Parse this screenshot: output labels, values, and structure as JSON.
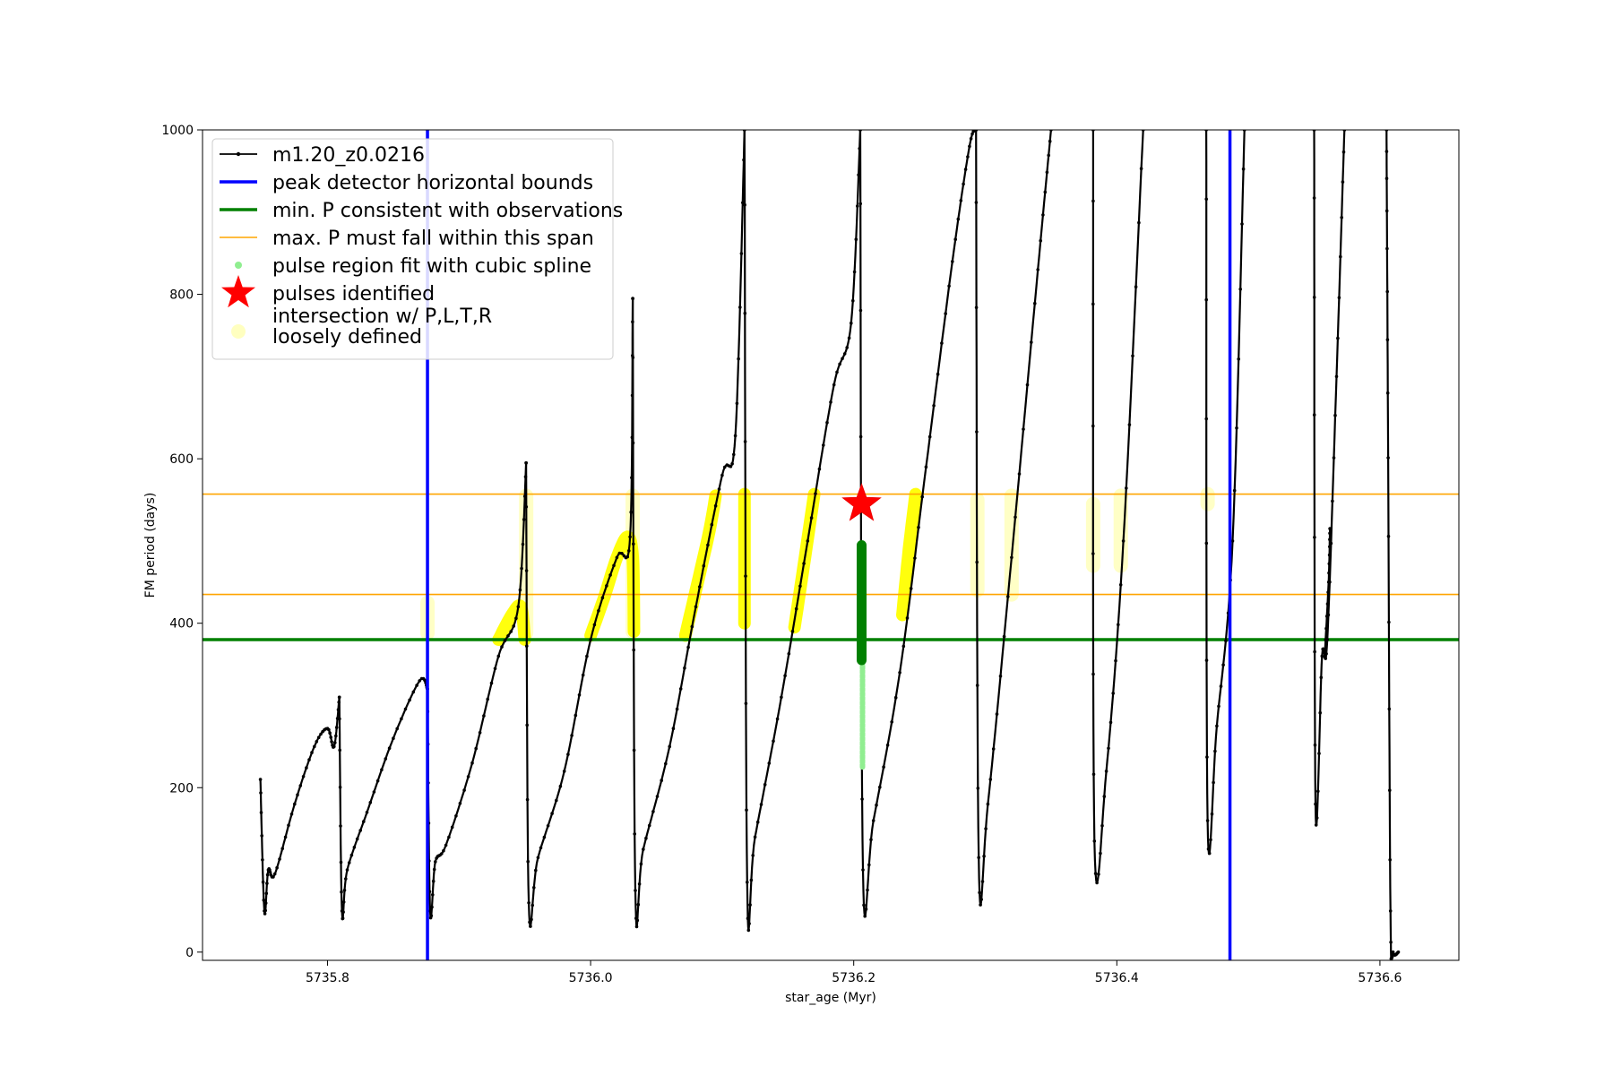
{
  "chart_data": {
    "type": "line",
    "xlabel": "star_age (Myr)",
    "ylabel": "FM period (days)",
    "xlim": [
      5735.705,
      5736.66
    ],
    "ylim": [
      -10,
      1000
    ],
    "xticks": [
      5735.8,
      5736.0,
      5736.2,
      5736.4,
      5736.6
    ],
    "xtick_labels": [
      "5735.8",
      "5736.0",
      "5736.2",
      "5736.4",
      "5736.6"
    ],
    "yticks": [
      0,
      200,
      400,
      600,
      800,
      1000
    ],
    "ytick_labels": [
      "0",
      "200",
      "400",
      "600",
      "800",
      "1000"
    ],
    "grid": false,
    "legend_position": "upper-left",
    "colors": {
      "series": "#000000",
      "bounds": "#0000ff",
      "min_p": "#008000",
      "max_p": "#ffa500",
      "spline": "#90ee90",
      "pulse": "#ff0000",
      "intersect": "#ffff00",
      "loose": "#ffffc0"
    },
    "legend": [
      {
        "key": "series",
        "label": "m1.20_z0.0216"
      },
      {
        "key": "bounds",
        "label": "peak detector horizontal bounds"
      },
      {
        "key": "min_p",
        "label": "min. P consistent with observations"
      },
      {
        "key": "max_p",
        "label": "max. P must fall within this span"
      },
      {
        "key": "spline",
        "label": "pulse region fit with cubic spline"
      },
      {
        "key": "pulse",
        "label": "pulses identified"
      },
      {
        "key": "loose",
        "label": "intersection w/ P,L,T,R",
        "label2": "loosely defined"
      }
    ],
    "series": [
      {
        "name": "m1.20_z0.0216",
        "segments": [
          {
            "x": [
              5735.749,
              5735.752,
              5735.755,
              5735.76,
              5735.775,
              5735.79,
              5735.8,
              5735.805,
              5735.809
            ],
            "y": [
              210,
              50,
              100,
              95,
              180,
              250,
              272,
              250,
              310
            ]
          },
          {
            "x": [
              5735.809,
              5735.811,
              5735.815,
              5735.83,
              5735.85,
              5735.87,
              5735.876
            ],
            "y": [
              310,
              50,
              100,
              170,
              260,
              330,
              320
            ]
          },
          {
            "x": [
              5735.876,
              5735.878,
              5735.882,
              5735.89,
              5735.91,
              5735.93,
              5735.945,
              5735.951
            ],
            "y": [
              320,
              50,
              110,
              130,
              230,
              360,
              420,
              595
            ]
          },
          {
            "x": [
              5735.951,
              5735.953,
              5735.96,
              5735.98,
              5736.0,
              5736.02,
              5736.03,
              5736.032
            ],
            "y": [
              595,
              60,
              115,
              220,
              380,
              480,
              505,
              795
            ]
          },
          {
            "x": [
              5736.032,
              5736.034,
              5736.04,
              5736.06,
              5736.08,
              5736.1,
              5736.11,
              5736.117
            ],
            "y": [
              795,
              75,
              125,
              250,
              420,
              580,
              628,
              1000
            ]
          },
          {
            "x": [
              5736.117,
              5736.119,
              5736.125,
              5736.145,
              5736.165,
              5736.185,
              5736.198,
              5736.205
            ],
            "y": [
              1000,
              85,
              140,
              310,
              500,
              690,
              765,
              1000
            ]
          },
          {
            "x": [
              5736.205,
              5736.207,
              5736.215,
              5736.235,
              5736.255,
              5736.275,
              5736.288,
              5736.293
            ],
            "y": [
              1000,
              100,
              160,
              340,
              590,
              840,
              980,
              1000
            ]
          },
          {
            "x": [
              5736.293,
              5736.295,
              5736.302,
              5736.32,
              5736.34,
              5736.35
            ],
            "y": [
              1000,
              115,
              180,
              480,
              830,
              1000
            ]
          },
          {
            "x": [
              5736.382,
              5736.383,
              5736.392,
              5736.405,
              5736.42
            ],
            "y": [
              1000,
              135,
              220,
              500,
              1000
            ]
          },
          {
            "x": [
              5736.468,
              5736.469,
              5736.476,
              5736.488,
              5736.497
            ],
            "y": [
              1000,
              160,
              275,
              500,
              1000
            ]
          },
          {
            "x": [
              5736.55,
              5736.551,
              5736.556,
              5736.56,
              5736.567,
              5736.573
            ],
            "y": [
              1000,
              180,
              360,
              380,
              700,
              1000
            ]
          },
          {
            "x": [
              5736.558,
              5736.561,
              5736.562
            ],
            "y": [
              360,
              450,
              515
            ]
          },
          {
            "x": [
              5736.605,
              5736.606,
              5736.608,
              5736.61,
              5736.614
            ],
            "y": [
              1000,
              680,
              50,
              0,
              0
            ]
          }
        ]
      }
    ],
    "vlines": [
      {
        "name": "peak detector horizontal bounds",
        "x": 5735.876
      },
      {
        "name": "peak detector horizontal bounds",
        "x": 5736.486
      }
    ],
    "hlines": [
      {
        "name": "min. P consistent with observations",
        "y": 380
      },
      {
        "name": "max. P must fall within this span",
        "y": 435
      },
      {
        "name": "max. P must fall within this span",
        "y": 557
      }
    ],
    "intersections": [
      {
        "x": [
          5735.93,
          5735.94,
          5735.947,
          5735.95
        ],
        "y": [
          380,
          410,
          420,
          380
        ]
      },
      {
        "x": [
          5736.0,
          5736.01,
          5736.02,
          5736.028,
          5736.032,
          5736.033
        ],
        "y": [
          385,
          430,
          480,
          505,
          480,
          390
        ]
      },
      {
        "x": [
          5736.072,
          5736.08,
          5736.09,
          5736.095
        ],
        "y": [
          385,
          440,
          510,
          555
        ]
      },
      {
        "x": [
          5736.117,
          5736.117
        ],
        "y": [
          400,
          557
        ]
      },
      {
        "x": [
          5736.155,
          5736.162,
          5736.17
        ],
        "y": [
          395,
          470,
          557
        ]
      },
      {
        "x": [
          5736.237,
          5736.242,
          5736.247
        ],
        "y": [
          410,
          490,
          557
        ]
      }
    ],
    "loose": [
      {
        "x": 5735.876,
        "y0": 388,
        "y1": 425
      },
      {
        "x": 5735.951,
        "y0": 388,
        "y1": 555
      },
      {
        "x": 5736.032,
        "y0": 390,
        "y1": 555
      },
      {
        "x": 5736.294,
        "y0": 440,
        "y1": 550
      },
      {
        "x": 5736.32,
        "y0": 435,
        "y1": 555
      },
      {
        "x": 5736.382,
        "y0": 470,
        "y1": 545
      },
      {
        "x": 5736.403,
        "y0": 470,
        "y1": 555
      },
      {
        "x": 5736.469,
        "y0": 545,
        "y1": 557
      }
    ],
    "pulse_region": {
      "x": 5736.206,
      "spline_range": [
        225,
        380
      ],
      "fit_range": [
        355,
        495
      ]
    },
    "pulses": [
      {
        "x": 5736.206,
        "y": 545
      }
    ]
  }
}
